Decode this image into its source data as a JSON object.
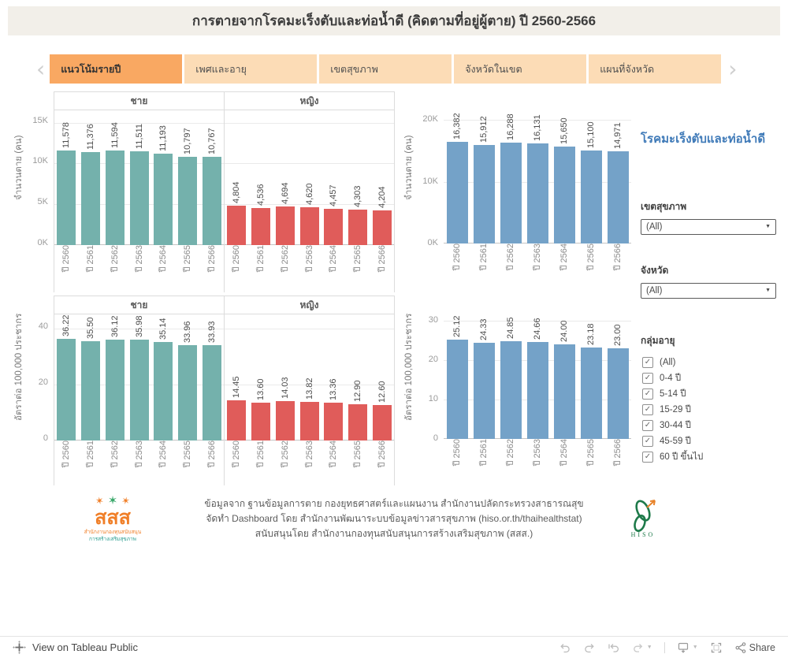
{
  "dashboard": {
    "title": "การตายจากโรคมะเร็งตับและท่อน้ำดี (คิดตามที่อยู่ผู้ตาย) ปี 2560-2566"
  },
  "tabs": [
    {
      "name": "trend-by-year",
      "label": "แนวโน้มรายปี",
      "active": true
    },
    {
      "name": "sex-and-age",
      "label": "เพศและอายุ",
      "active": false
    },
    {
      "name": "health-region",
      "label": "เขตสุขภาพ",
      "active": false
    },
    {
      "name": "province-in-region",
      "label": "จังหวัดในเขต",
      "active": false
    },
    {
      "name": "province-map",
      "label": "แผนที่จังหวัด",
      "active": false
    }
  ],
  "colors": {
    "male": "#74b1ac",
    "female": "#e05c5a",
    "total": "#74a2c8",
    "tab_active": "#f9a862",
    "tab_inactive": "#fcdcb6",
    "panel_title_blue": "#3f7ab8"
  },
  "chart_data": [
    {
      "id": "deaths_count_by_sex",
      "type": "bar",
      "ylabel": "จำนวนตาย (คน)",
      "categories": [
        "ปี 2560",
        "ปี 2561",
        "ปี 2562",
        "ปี 2563",
        "ปี 2564",
        "ปี 2565",
        "ปี 2566"
      ],
      "series": [
        {
          "name": "ชาย",
          "color": "#74b1ac",
          "values": [
            11578,
            11376,
            11594,
            11511,
            11193,
            10797,
            10767
          ]
        },
        {
          "name": "หญิง",
          "color": "#e05c5a",
          "values": [
            4804,
            4536,
            4694,
            4620,
            4457,
            4303,
            4204
          ]
        }
      ],
      "ylim": [
        0,
        16500
      ],
      "yticks": [
        {
          "value": 0,
          "label": "0K"
        },
        {
          "value": 5000,
          "label": "5K"
        },
        {
          "value": 10000,
          "label": "10K"
        },
        {
          "value": 15000,
          "label": "15K"
        }
      ],
      "value_format": "int",
      "grid": true,
      "value_labels": "rotated-above-bars"
    },
    {
      "id": "deaths_count_total",
      "type": "bar",
      "ylabel": "จำนวนตาย (คน)",
      "categories": [
        "ปี 2560",
        "ปี 2561",
        "ปี 2562",
        "ปี 2563",
        "ปี 2564",
        "ปี 2565",
        "ปี 2566"
      ],
      "series": [
        {
          "name": "",
          "color": "#74a2c8",
          "values": [
            16382,
            15912,
            16288,
            16131,
            15650,
            15100,
            14971
          ]
        }
      ],
      "ylim": [
        0,
        21800
      ],
      "yticks": [
        {
          "value": 0,
          "label": "0K"
        },
        {
          "value": 10000,
          "label": "10K"
        },
        {
          "value": 20000,
          "label": "20K"
        }
      ],
      "value_format": "int",
      "grid": true,
      "value_labels": "rotated-above-bars"
    },
    {
      "id": "death_rate_by_sex",
      "type": "bar",
      "ylabel": "อัตราต่อ 100,000 ประชากร",
      "categories": [
        "ปี 2560",
        "ปี 2561",
        "ปี 2562",
        "ปี 2563",
        "ปี 2564",
        "ปี 2565",
        "ปี 2566"
      ],
      "series": [
        {
          "name": "ชาย",
          "color": "#74b1ac",
          "values": [
            36.22,
            35.5,
            36.12,
            35.98,
            35.14,
            33.96,
            33.93
          ]
        },
        {
          "name": "หญิง",
          "color": "#e05c5a",
          "values": [
            14.45,
            13.6,
            14.03,
            13.82,
            13.36,
            12.9,
            12.6
          ]
        }
      ],
      "ylim": [
        0,
        45
      ],
      "yticks": [
        {
          "value": 0,
          "label": "0"
        },
        {
          "value": 20,
          "label": "20"
        },
        {
          "value": 40,
          "label": "40"
        }
      ],
      "value_format": "2dp",
      "grid": true,
      "value_labels": "rotated-above-bars"
    },
    {
      "id": "death_rate_total",
      "type": "bar",
      "ylabel": "อัตราต่อ 100,000 ประชากร",
      "categories": [
        "ปี 2560",
        "ปี 2561",
        "ปี 2562",
        "ปี 2563",
        "ปี 2564",
        "ปี 2565",
        "ปี 2566"
      ],
      "series": [
        {
          "name": "",
          "color": "#74a2c8",
          "values": [
            25.12,
            24.33,
            24.85,
            24.66,
            24.0,
            23.18,
            23.0
          ]
        }
      ],
      "ylim": [
        0,
        32
      ],
      "yticks": [
        {
          "value": 0,
          "label": "0"
        },
        {
          "value": 10,
          "label": "10"
        },
        {
          "value": 20,
          "label": "20"
        },
        {
          "value": 30,
          "label": "30"
        }
      ],
      "value_format": "2dp",
      "grid": true,
      "value_labels": "rotated-above-bars"
    }
  ],
  "sidebar": {
    "panel_title": "โรคมะเร็งตับและท่อน้ำดี",
    "filters": [
      {
        "label": "เขตสุขภาพ",
        "value": "(All)"
      },
      {
        "label": "จังหวัด",
        "value": "(All)"
      }
    ],
    "age_filter": {
      "label": "กลุ่มอายุ",
      "options": [
        {
          "label": "(All)",
          "checked": true
        },
        {
          "label": "0-4 ปี",
          "checked": true
        },
        {
          "label": "5-14 ปี",
          "checked": true
        },
        {
          "label": "15-29 ปี",
          "checked": true
        },
        {
          "label": "30-44 ปี",
          "checked": true
        },
        {
          "label": "45-59 ปี",
          "checked": true
        },
        {
          "label": "60 ปี ขึ้นไป",
          "checked": true
        }
      ]
    }
  },
  "footer": {
    "credit_lines": [
      "ข้อมูลจาก ฐานข้อมูลการตาย กองยุทธศาสตร์และแผนงาน สำนักงานปลัดกระทรวงสาธารณสุข",
      "จัดทำ Dashboard โดย สำนักงานพัฒนาระบบข้อมูลข่าวสารสุขภาพ (hiso.or.th/thaihealthstat)",
      "สนับสนุนโดย สำนักงานกองทุนสนับสนุนการสร้างเสริมสุขภาพ (สสส.)"
    ],
    "logos": {
      "left_word": "สสส",
      "left_caption1": "สำนักงานกองทุนสนับสนุน",
      "left_caption2": "การสร้างเสริมสุขภาพ",
      "right_word": "H I S O"
    }
  },
  "toolbar": {
    "view_label": "View on Tableau Public",
    "share_label": "Share"
  }
}
